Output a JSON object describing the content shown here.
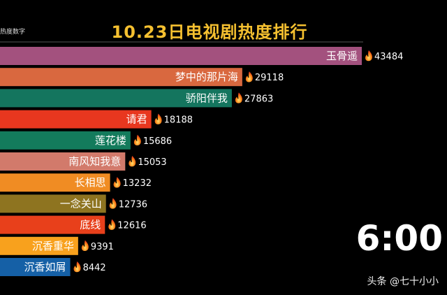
{
  "header": {
    "title": "10.23日电视剧热度排行",
    "corner_label": "热度数字"
  },
  "clock": "6:00",
  "watermark": "头条 @七十小小",
  "chart_data": {
    "type": "bar",
    "orientation": "horizontal",
    "title": "10.23日电视剧热度排行",
    "categories": [
      "玉骨遥",
      "梦中的那片海",
      "骄阳伴我",
      "请君",
      "莲花楼",
      "南风知我意",
      "长相思",
      "一念关山",
      "底线",
      "沉香重华",
      "沉香如屑"
    ],
    "values": [
      43484,
      29118,
      27863,
      18188,
      15686,
      15053,
      13232,
      12736,
      12616,
      9391,
      8442
    ],
    "colors": [
      "#a3517e",
      "#d9683f",
      "#14755e",
      "#e8371f",
      "#137b5c",
      "#d27a6b",
      "#f08c23",
      "#8e7420",
      "#e8401b",
      "#f8a11d",
      "#1560a6"
    ],
    "value_icon": "fire-icon",
    "xlim": [
      0,
      43484
    ]
  }
}
